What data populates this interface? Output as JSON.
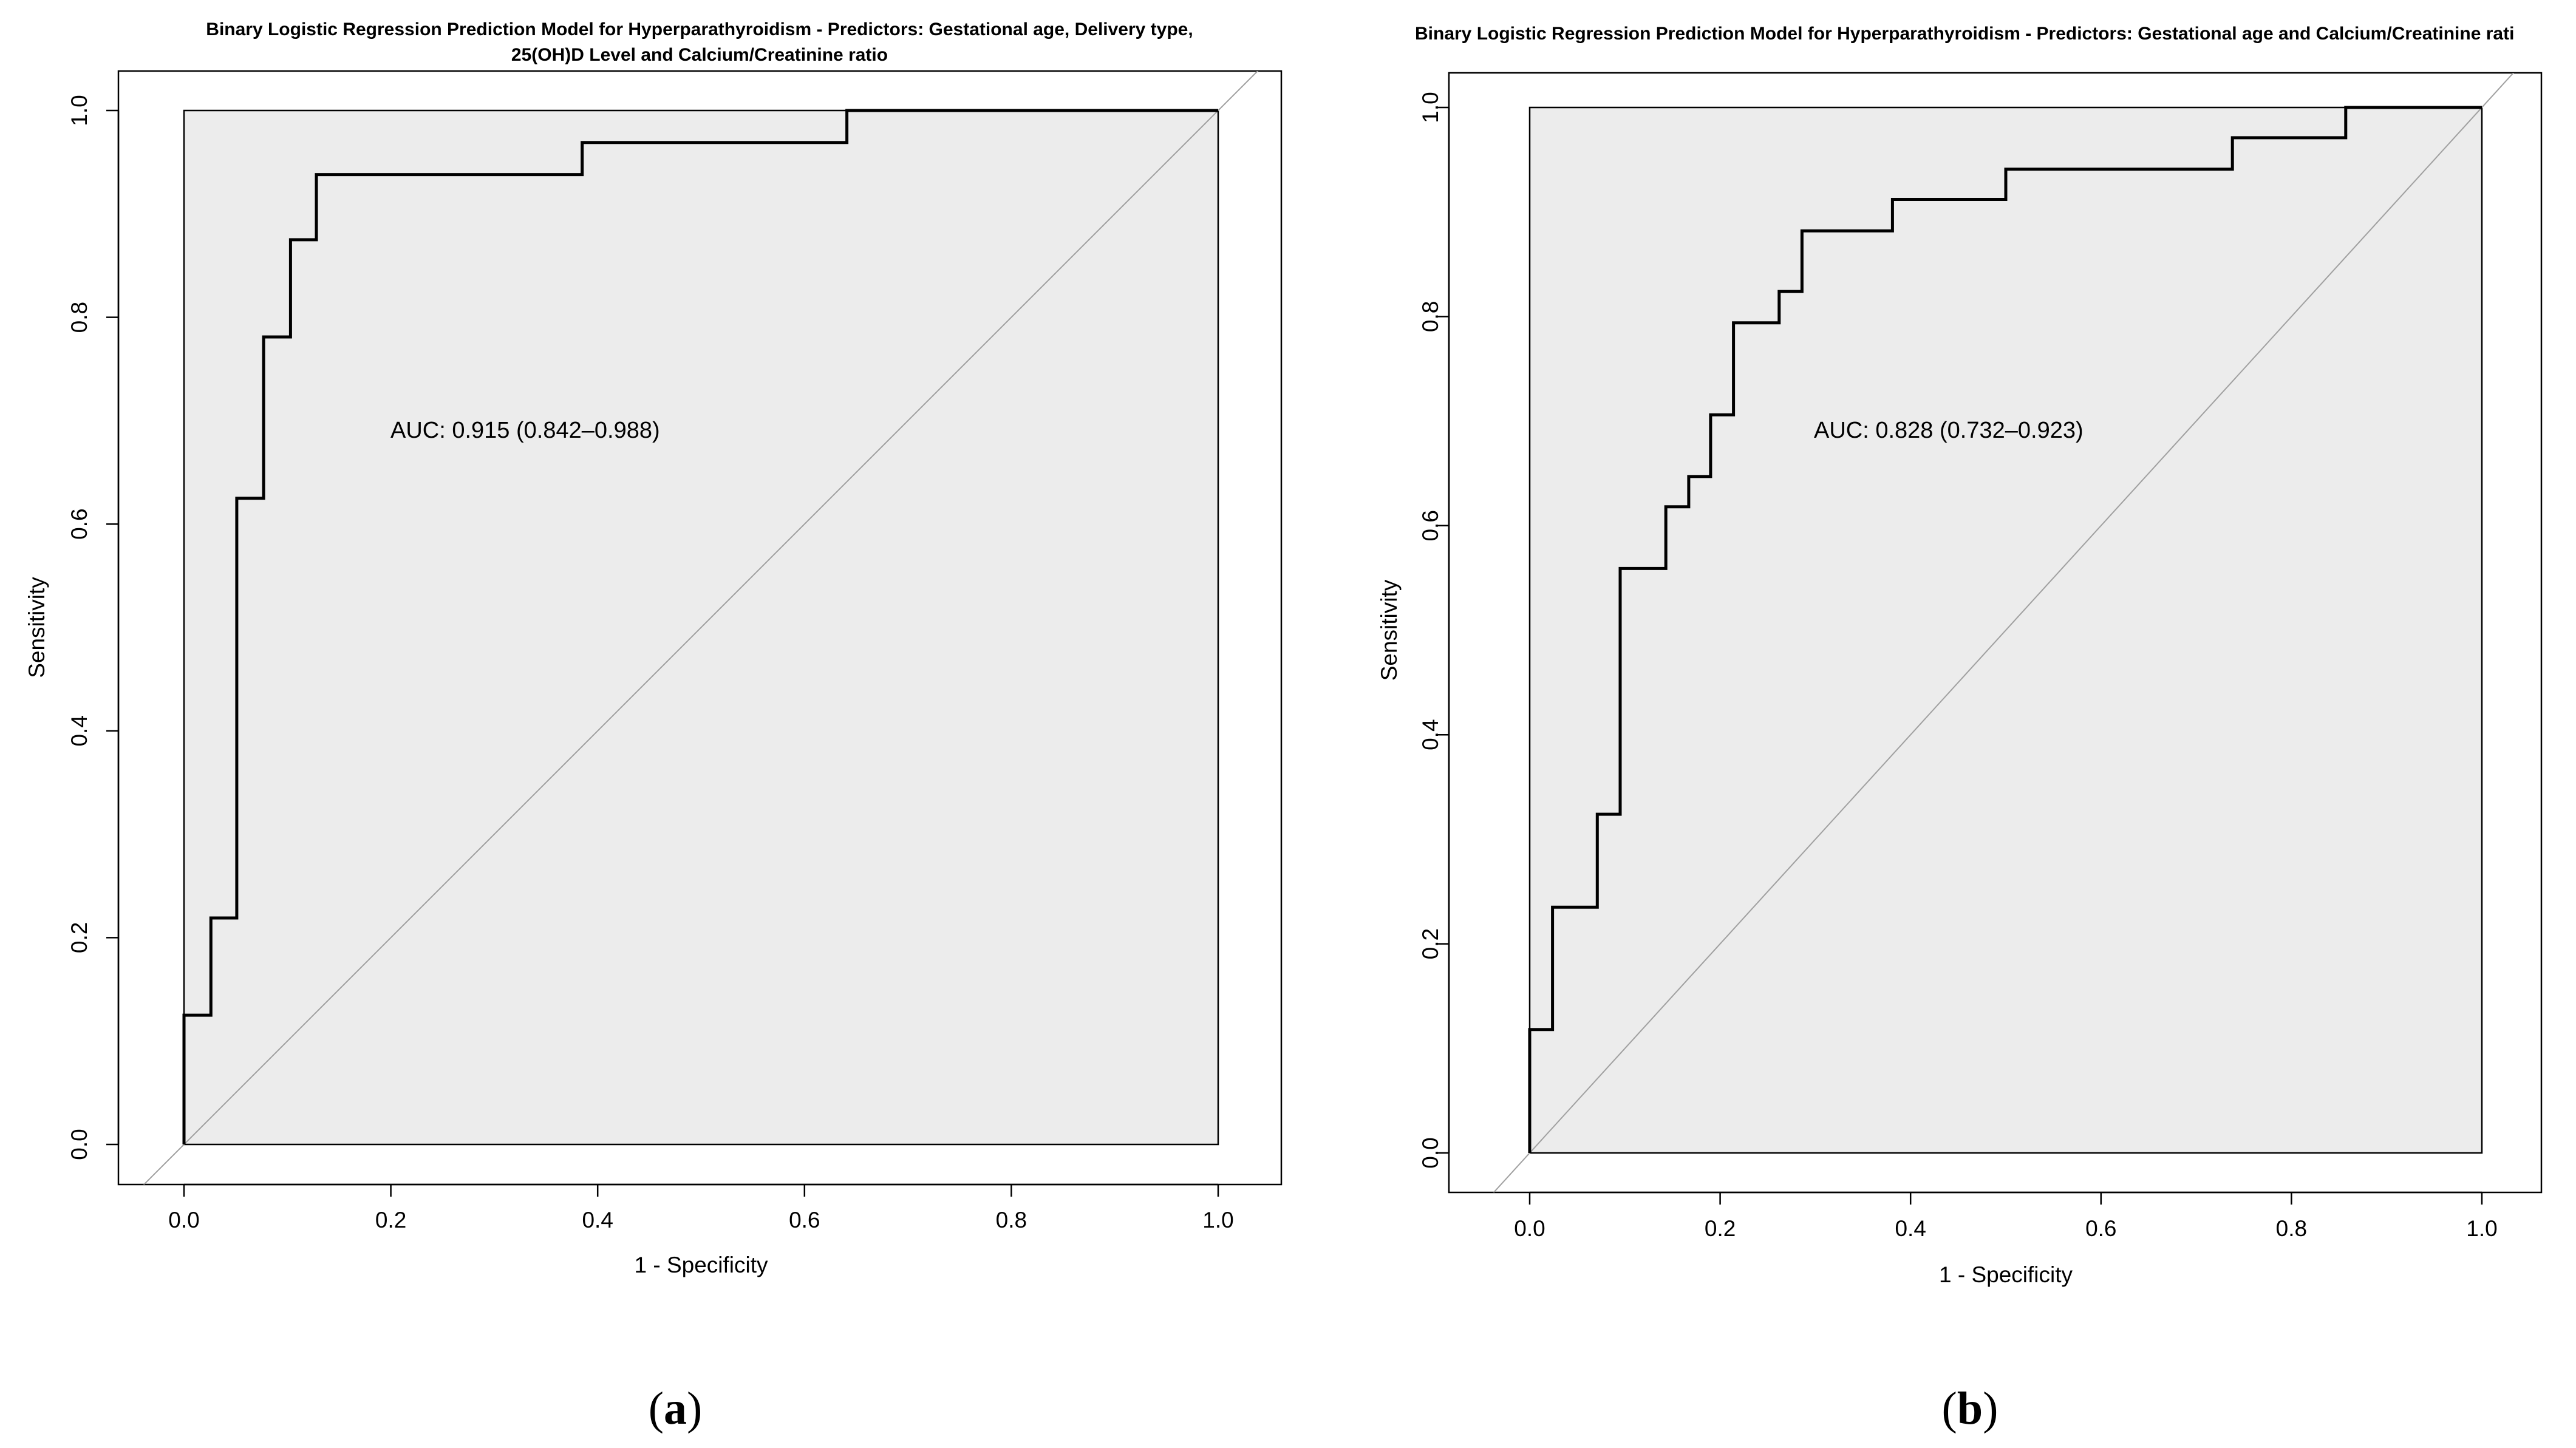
{
  "chart_data": [
    {
      "type": "line",
      "subtype": "roc",
      "panel": "a",
      "panel_label": [
        "(",
        "a",
        ")"
      ],
      "title_lines": [
        "Binary Logistic Regression Prediction Model for Hyperparathyroidism - Predictors: Gestational age, Delivery type,",
        "25(OH)D Level and Calcium/Creatinine ratio"
      ],
      "xlabel": "1 - Specificity",
      "ylabel": "Sensitivity",
      "xlim": [
        0,
        1
      ],
      "ylim": [
        0,
        1
      ],
      "xticks": [
        "0.0",
        "0.2",
        "0.4",
        "0.6",
        "0.8",
        "1.0"
      ],
      "yticks": [
        "0.0",
        "0.2",
        "0.4",
        "0.6",
        "0.8",
        "1.0"
      ],
      "annotation": "AUC: 0.915 (0.842–0.988)",
      "reference_line": "diagonal",
      "x": [
        0,
        0,
        0.026,
        0.026,
        0.051,
        0.051,
        0.077,
        0.077,
        0.103,
        0.103,
        0.128,
        0.128,
        0.385,
        0.385,
        0.641,
        0.641,
        1.0
      ],
      "y": [
        0,
        0.125,
        0.125,
        0.219,
        0.219,
        0.625,
        0.625,
        0.781,
        0.781,
        0.875,
        0.875,
        0.938,
        0.938,
        0.969,
        0.969,
        1.0,
        1.0
      ]
    },
    {
      "type": "line",
      "subtype": "roc",
      "panel": "b",
      "panel_label": [
        "(",
        "b",
        ")"
      ],
      "title_lines": [
        "Binary Logistic Regression Prediction Model for Hyperparathyroidism - Predictors: Gestational age and Calcium/Creatinine rati"
      ],
      "xlabel": "1 - Specificity",
      "ylabel": "Sensitivity",
      "xlim": [
        0,
        1
      ],
      "ylim": [
        0,
        1
      ],
      "xticks": [
        "0.0",
        "0.2",
        "0.4",
        "0.6",
        "0.8",
        "1.0"
      ],
      "yticks": [
        "0.0",
        "0.2",
        "0.4",
        "0.6",
        "0.8",
        "1.0"
      ],
      "annotation": "AUC: 0.828 (0.732–0.923)",
      "reference_line": "diagonal",
      "x": [
        0,
        0,
        0.024,
        0.024,
        0.071,
        0.071,
        0.095,
        0.095,
        0.143,
        0.143,
        0.167,
        0.167,
        0.19,
        0.19,
        0.214,
        0.214,
        0.262,
        0.262,
        0.286,
        0.286,
        0.381,
        0.381,
        0.5,
        0.5,
        0.738,
        0.738,
        0.857,
        0.857,
        1.0
      ],
      "y": [
        0,
        0.118,
        0.118,
        0.235,
        0.235,
        0.324,
        0.324,
        0.559,
        0.559,
        0.618,
        0.618,
        0.647,
        0.647,
        0.706,
        0.706,
        0.794,
        0.794,
        0.824,
        0.824,
        0.882,
        0.882,
        0.912,
        0.912,
        0.941,
        0.941,
        0.971,
        0.971,
        1.0,
        1.0
      ]
    }
  ]
}
